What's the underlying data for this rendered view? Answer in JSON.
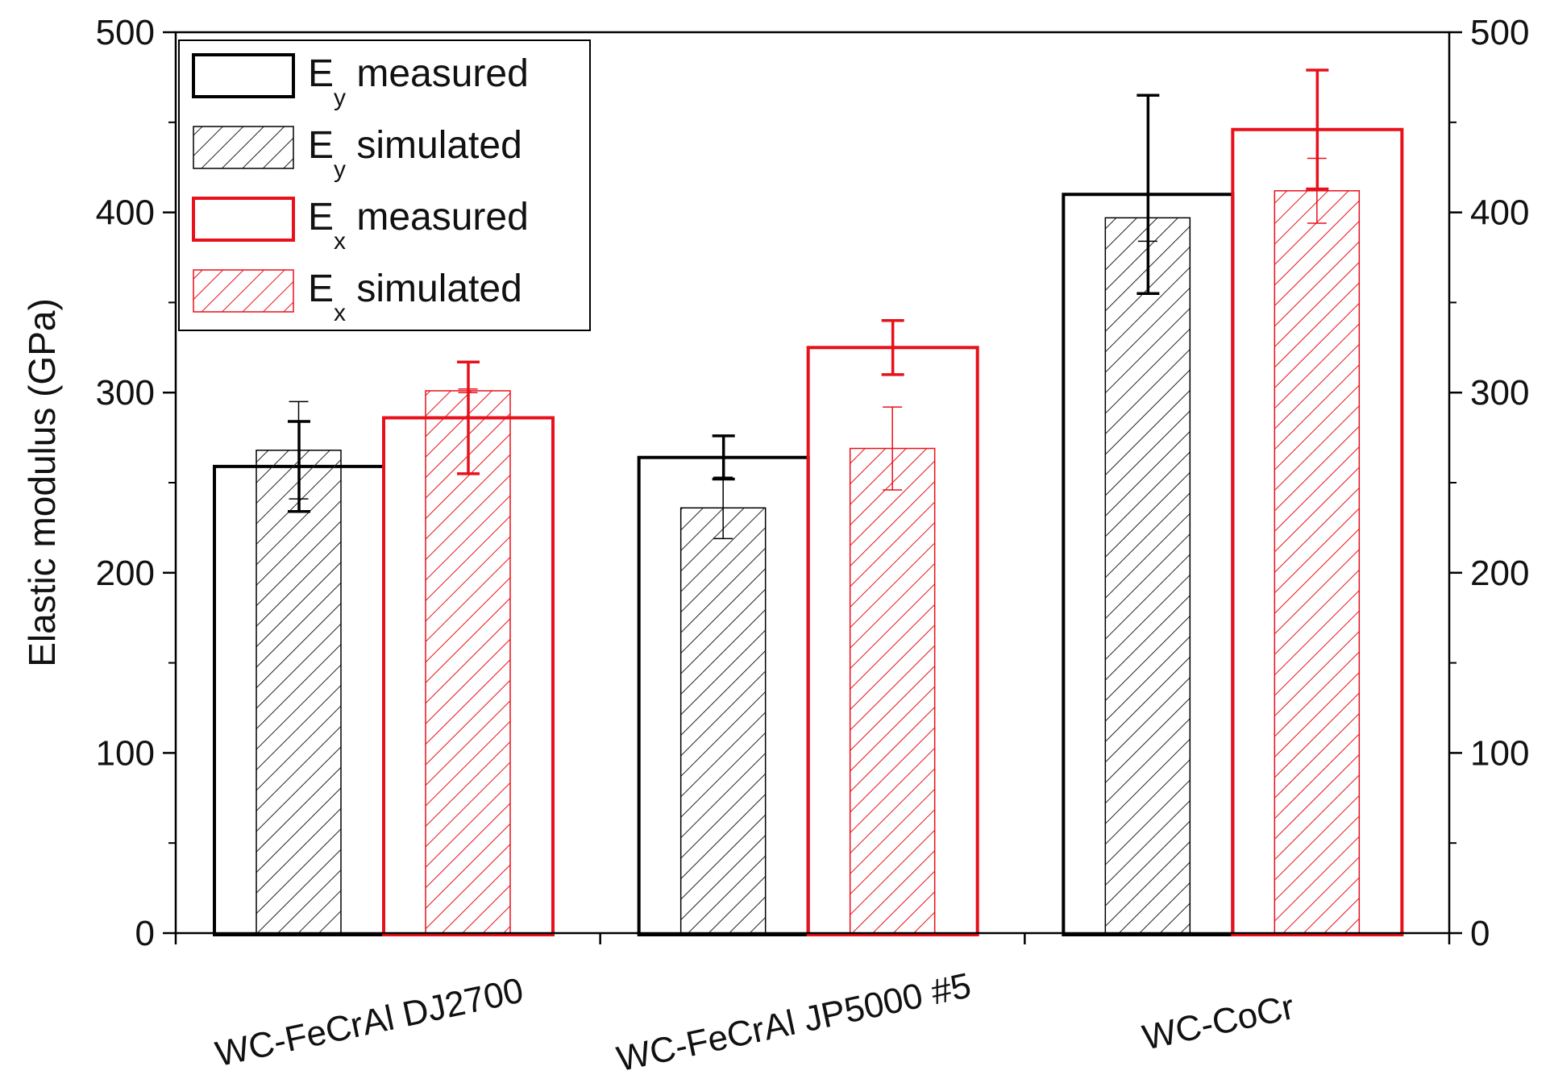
{
  "chart_data": {
    "type": "bar",
    "categories": [
      "WC-FeCrAl DJ2700",
      "WC-FeCrAl JP5000 #5",
      "WC-CoCr"
    ],
    "ylabel": "Elastic modulus (GPa)",
    "ylim": [
      0,
      500
    ],
    "yticks": [
      "0",
      "100",
      "200",
      "300",
      "400",
      "500"
    ],
    "secondary_y_axis": true,
    "legend_position": "top-left",
    "series": [
      {
        "name_main": "E",
        "name_sub": "y",
        "name_rest": " measured",
        "style": "outline",
        "color": "#000000",
        "values": [
          259,
          264,
          410
        ],
        "errors": [
          25,
          12,
          55
        ]
      },
      {
        "name_main": "E",
        "name_sub": "y",
        "name_rest": " simulated",
        "style": "hatched",
        "color": "#000000",
        "values": [
          268,
          236,
          397
        ],
        "errors": [
          27,
          17,
          13
        ]
      },
      {
        "name_main": "E",
        "name_sub": "x",
        "name_rest": " measured",
        "style": "outline",
        "color": "#e8101a",
        "values": [
          286,
          325,
          446
        ],
        "errors": [
          31,
          15,
          33
        ]
      },
      {
        "name_main": "E",
        "name_sub": "x",
        "name_rest": " simulated",
        "style": "hatched",
        "color": "#e8101a",
        "values": [
          301,
          269,
          412
        ],
        "errors": [
          1,
          23,
          18
        ]
      }
    ]
  }
}
